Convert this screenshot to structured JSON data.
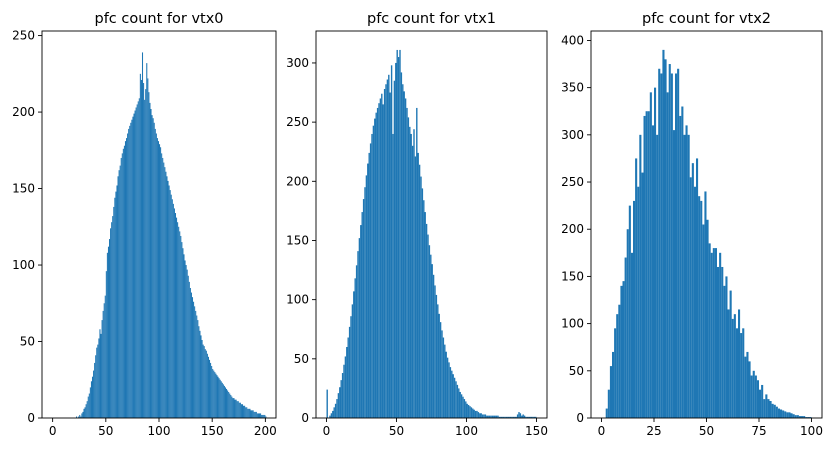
{
  "chart_data": [
    {
      "type": "bar",
      "title": "pfc count for vtx0",
      "xlabel": "",
      "ylabel": "",
      "xlim": [
        -10,
        210
      ],
      "ylim": [
        0,
        253
      ],
      "xticks": [
        0,
        50,
        100,
        150,
        200
      ],
      "yticks": [
        0,
        50,
        100,
        150,
        200,
        250
      ],
      "bin_width": 1,
      "bin_start": 0,
      "values": [
        0,
        0,
        0,
        0,
        0,
        0,
        0,
        0,
        0,
        0,
        0,
        0,
        0,
        0,
        0,
        0,
        0,
        0,
        0,
        0,
        0,
        0,
        1,
        0,
        1,
        2,
        1,
        3,
        4,
        6,
        7,
        9,
        11,
        14,
        16,
        20,
        24,
        27,
        31,
        36,
        41,
        46,
        48,
        52,
        58,
        55,
        64,
        70,
        75,
        80,
        96,
        108,
        112,
        117,
        124,
        128,
        132,
        138,
        144,
        148,
        152,
        158,
        162,
        165,
        170,
        173,
        176,
        178,
        181,
        183,
        186,
        189,
        191,
        193,
        195,
        197,
        199,
        201,
        203,
        205,
        207,
        209,
        225,
        221,
        239,
        219,
        208,
        215,
        232,
        222,
        213,
        206,
        202,
        198,
        196,
        193,
        189,
        186,
        183,
        181,
        179,
        177,
        173,
        170,
        167,
        164,
        161,
        158,
        155,
        152,
        149,
        146,
        143,
        140,
        137,
        134,
        131,
        128,
        125,
        122,
        119,
        115,
        111,
        107,
        103,
        100,
        97,
        93,
        89,
        85,
        82,
        79,
        76,
        73,
        70,
        67,
        64,
        60,
        57,
        54,
        51,
        48,
        47,
        45,
        44,
        42,
        40,
        38,
        36,
        34,
        32,
        31,
        30,
        29,
        28,
        27,
        26,
        25,
        24,
        23,
        22,
        21,
        20,
        19,
        18,
        17,
        16,
        15,
        14,
        13,
        13,
        12,
        12,
        11,
        11,
        10,
        10,
        9,
        9,
        8,
        8,
        7,
        7,
        6,
        6,
        6,
        5,
        5,
        5,
        4,
        4,
        4,
        3,
        3,
        3,
        3,
        2,
        2,
        2,
        2,
        1
      ]
    },
    {
      "type": "bar",
      "title": "pfc count for vtx1",
      "xlabel": "",
      "ylabel": "",
      "xlim": [
        -7.5,
        157.5
      ],
      "ylim": [
        0,
        327
      ],
      "xticks": [
        0,
        50,
        100,
        150
      ],
      "yticks": [
        0,
        50,
        100,
        150,
        200,
        250,
        300
      ],
      "bin_width": 1,
      "bin_start": 0,
      "values": [
        24,
        0,
        2,
        4,
        6,
        9,
        12,
        16,
        21,
        26,
        32,
        38,
        45,
        52,
        60,
        68,
        77,
        86,
        96,
        107,
        118,
        129,
        141,
        152,
        163,
        174,
        185,
        195,
        205,
        215,
        224,
        232,
        240,
        247,
        253,
        258,
        262,
        266,
        270,
        274,
        265,
        278,
        282,
        286,
        290,
        275,
        298,
        240,
        285,
        300,
        311,
        305,
        311,
        292,
        282,
        276,
        270,
        262,
        254,
        246,
        240,
        230,
        244,
        221,
        262,
        224,
        214,
        204,
        194,
        184,
        174,
        164,
        155,
        146,
        138,
        130,
        121,
        112,
        104,
        96,
        88,
        81,
        74,
        68,
        62,
        56,
        51,
        47,
        43,
        40,
        37,
        34,
        31,
        28,
        25,
        22,
        20,
        18,
        16,
        14,
        12,
        11,
        10,
        9,
        8,
        7,
        6,
        6,
        5,
        4,
        4,
        3,
        3,
        3,
        2,
        2,
        2,
        2,
        2,
        2,
        2,
        2,
        2,
        1,
        1,
        1,
        1,
        1,
        1,
        1,
        1,
        1,
        1,
        1,
        1,
        1,
        3,
        5,
        4,
        2,
        3,
        2,
        1,
        1,
        1,
        1,
        1,
        1,
        1,
        1
      ]
    },
    {
      "type": "bar",
      "title": "pfc count for vtx2",
      "xlabel": "",
      "ylabel": "",
      "xlim": [
        -5,
        105
      ],
      "ylim": [
        0,
        410
      ],
      "xticks": [
        0,
        25,
        50,
        75,
        100
      ],
      "yticks": [
        0,
        50,
        100,
        150,
        200,
        250,
        300,
        350,
        400
      ],
      "bin_width": 1,
      "bin_start": 0,
      "values": [
        0,
        0,
        10,
        30,
        55,
        70,
        95,
        110,
        120,
        140,
        145,
        170,
        200,
        225,
        175,
        230,
        275,
        245,
        300,
        260,
        320,
        325,
        325,
        345,
        310,
        350,
        300,
        370,
        365,
        390,
        380,
        345,
        375,
        365,
        305,
        365,
        370,
        320,
        330,
        300,
        310,
        300,
        255,
        270,
        245,
        275,
        235,
        230,
        205,
        240,
        210,
        185,
        175,
        180,
        180,
        160,
        175,
        160,
        140,
        150,
        115,
        135,
        105,
        110,
        95,
        115,
        90,
        95,
        65,
        70,
        60,
        45,
        50,
        45,
        40,
        30,
        35,
        20,
        25,
        20,
        18,
        15,
        14,
        12,
        10,
        9,
        8,
        7,
        6,
        6,
        5,
        4,
        3,
        3,
        2,
        2,
        2,
        1,
        1,
        1
      ]
    }
  ]
}
